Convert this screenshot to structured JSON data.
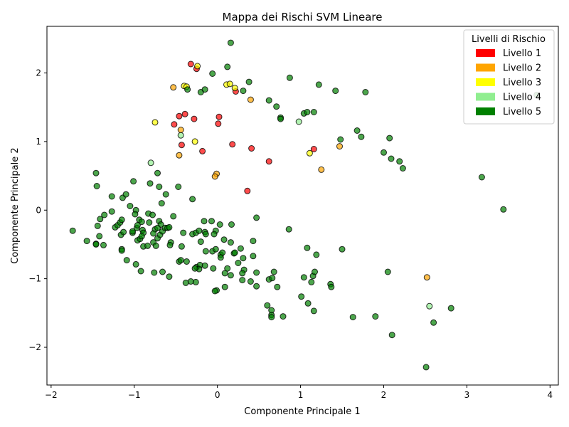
{
  "chart_data": {
    "type": "scatter",
    "title": "Mappa dei Rischi SVM Lineare",
    "xlabel": "Componente Principale 1",
    "ylabel": "Componente Principale 2",
    "xlim": [
      -2.05,
      4.1
    ],
    "ylim": [
      -2.55,
      2.68
    ],
    "xticks": [
      -2,
      -1,
      0,
      1,
      2,
      3,
      4
    ],
    "yticks": [
      -2,
      -1,
      0,
      1,
      2
    ],
    "grid": false,
    "legend": {
      "title": "Livelli di Rischio",
      "placement": "top-right",
      "entries": [
        {
          "label": "Livello 1",
          "color": "#ff0000"
        },
        {
          "label": "Livello 2",
          "color": "#ffa500"
        },
        {
          "label": "Livello 3",
          "color": "#ffff00"
        },
        {
          "label": "Livello 4",
          "color": "#90ee90"
        },
        {
          "label": "Livello 5",
          "color": "#008000"
        }
      ]
    },
    "series": [
      {
        "name": "Livello 1",
        "color": "#ff0000",
        "points": [
          [
            -0.32,
            2.13
          ],
          [
            -0.25,
            2.06
          ],
          [
            0.22,
            1.73
          ],
          [
            -0.39,
            1.4
          ],
          [
            -0.28,
            1.33
          ],
          [
            -0.46,
            1.37
          ],
          [
            -0.52,
            1.25
          ],
          [
            0.02,
            1.36
          ],
          [
            0.01,
            1.26
          ],
          [
            -0.43,
            0.95
          ],
          [
            0.18,
            0.96
          ],
          [
            0.41,
            0.9
          ],
          [
            -0.18,
            0.86
          ],
          [
            0.62,
            0.71
          ],
          [
            1.16,
            0.89
          ],
          [
            0.36,
            0.28
          ]
        ]
      },
      {
        "name": "Livello 2",
        "color": "#ffa500",
        "points": [
          [
            -0.53,
            1.79
          ],
          [
            -0.44,
            1.17
          ],
          [
            -0.46,
            0.8
          ],
          [
            0.4,
            1.61
          ],
          [
            -0.01,
            0.53
          ],
          [
            -0.03,
            0.49
          ],
          [
            1.47,
            0.93
          ],
          [
            1.25,
            0.59
          ],
          [
            2.52,
            -0.98
          ]
        ]
      },
      {
        "name": "Livello 3",
        "color": "#ffff00",
        "points": [
          [
            -0.24,
            2.1
          ],
          [
            -0.4,
            1.81
          ],
          [
            -0.37,
            1.8
          ],
          [
            0.11,
            1.83
          ],
          [
            0.15,
            1.84
          ],
          [
            0.21,
            1.78
          ],
          [
            -0.75,
            1.28
          ],
          [
            -0.27,
            1.0
          ],
          [
            1.11,
            0.83
          ]
        ]
      },
      {
        "name": "Livello 4",
        "color": "#90ee90",
        "points": [
          [
            -0.44,
            1.09
          ],
          [
            -0.8,
            0.69
          ],
          [
            0.98,
            1.29
          ],
          [
            2.55,
            -1.4
          ]
        ]
      },
      {
        "name": "Livello 5",
        "color": "#008000",
        "points": [
          [
            0.16,
            2.44
          ],
          [
            0.12,
            2.09
          ],
          [
            -0.06,
            1.99
          ],
          [
            0.38,
            1.87
          ],
          [
            0.87,
            1.93
          ],
          [
            -0.36,
            1.76
          ],
          [
            -0.2,
            1.72
          ],
          [
            -0.15,
            1.76
          ],
          [
            0.31,
            1.74
          ],
          [
            0.62,
            1.6
          ],
          [
            0.71,
            1.51
          ],
          [
            0.76,
            1.35
          ],
          [
            0.76,
            1.33
          ],
          [
            1.04,
            1.41
          ],
          [
            1.08,
            1.43
          ],
          [
            1.16,
            1.43
          ],
          [
            1.22,
            1.83
          ],
          [
            1.42,
            1.74
          ],
          [
            1.78,
            1.72
          ],
          [
            1.68,
            1.16
          ],
          [
            1.73,
            1.07
          ],
          [
            1.48,
            1.03
          ],
          [
            2.07,
            1.05
          ],
          [
            2.0,
            0.84
          ],
          [
            2.09,
            0.75
          ],
          [
            2.19,
            0.71
          ],
          [
            2.23,
            0.61
          ],
          [
            3.18,
            0.48
          ],
          [
            3.44,
            0.01
          ],
          [
            3.84,
            1.68
          ],
          [
            -1.46,
            0.54
          ],
          [
            -1.45,
            0.35
          ],
          [
            -1.01,
            0.42
          ],
          [
            -0.72,
            0.54
          ],
          [
            -0.7,
            0.34
          ],
          [
            -0.62,
            0.23
          ],
          [
            -0.47,
            0.34
          ],
          [
            -0.67,
            0.1
          ],
          [
            -0.3,
            0.16
          ],
          [
            -0.81,
            0.39
          ],
          [
            -1.27,
            0.2
          ],
          [
            -1.14,
            0.18
          ],
          [
            -1.1,
            0.23
          ],
          [
            -1.05,
            0.06
          ],
          [
            -0.98,
            0.0
          ],
          [
            -0.99,
            -0.06
          ],
          [
            -1.27,
            -0.02
          ],
          [
            -1.36,
            -0.07
          ],
          [
            -1.41,
            -0.13
          ],
          [
            -1.44,
            -0.23
          ],
          [
            -1.42,
            -0.38
          ],
          [
            -1.37,
            -0.51
          ],
          [
            -1.74,
            -0.3
          ],
          [
            -1.57,
            -0.45
          ],
          [
            -1.46,
            -0.49
          ],
          [
            -1.46,
            -0.5
          ],
          [
            -1.23,
            -0.25
          ],
          [
            -1.2,
            -0.22
          ],
          [
            -1.17,
            -0.18
          ],
          [
            -1.15,
            -0.14
          ],
          [
            -1.16,
            -0.36
          ],
          [
            -1.13,
            -0.32
          ],
          [
            -1.09,
            -0.73
          ],
          [
            -1.15,
            -0.57
          ],
          [
            -1.15,
            -0.59
          ],
          [
            -1.02,
            -0.33
          ],
          [
            -1.02,
            -0.31
          ],
          [
            -0.97,
            -0.26
          ],
          [
            -0.96,
            -0.22
          ],
          [
            -0.94,
            -0.14
          ],
          [
            -0.91,
            -0.17
          ],
          [
            -0.9,
            -0.29
          ],
          [
            -0.89,
            -0.33
          ],
          [
            -0.96,
            -0.44
          ],
          [
            -0.93,
            -0.42
          ],
          [
            -0.91,
            -0.38
          ],
          [
            -0.89,
            -0.53
          ],
          [
            -0.84,
            -0.52
          ],
          [
            -0.98,
            -0.79
          ],
          [
            -0.92,
            -0.89
          ],
          [
            -0.83,
            -0.05
          ],
          [
            -0.78,
            -0.07
          ],
          [
            -0.82,
            -0.18
          ],
          [
            -0.75,
            -0.28
          ],
          [
            -0.7,
            -0.16
          ],
          [
            -0.68,
            -0.21
          ],
          [
            -0.72,
            -0.26
          ],
          [
            -0.77,
            -0.34
          ],
          [
            -0.72,
            -0.41
          ],
          [
            -0.77,
            -0.47
          ],
          [
            -0.74,
            -0.52
          ],
          [
            -0.69,
            -0.36
          ],
          [
            -0.66,
            -0.31
          ],
          [
            -0.63,
            -0.26
          ],
          [
            -0.6,
            -0.26
          ],
          [
            -0.58,
            -0.25
          ],
          [
            -0.53,
            -0.09
          ],
          [
            -0.56,
            -0.47
          ],
          [
            -0.57,
            -0.51
          ],
          [
            -0.66,
            -0.9
          ],
          [
            -0.58,
            -0.97
          ],
          [
            -0.76,
            -0.91
          ],
          [
            -0.46,
            -0.75
          ],
          [
            -0.44,
            -0.73
          ],
          [
            -0.43,
            -0.53
          ],
          [
            -0.41,
            -0.33
          ],
          [
            -0.37,
            -0.75
          ],
          [
            -0.3,
            -0.35
          ],
          [
            -0.26,
            -0.33
          ],
          [
            -0.22,
            -0.3
          ],
          [
            -0.16,
            -0.16
          ],
          [
            -0.15,
            -0.32
          ],
          [
            -0.14,
            -0.35
          ],
          [
            -0.14,
            -0.6
          ],
          [
            -0.2,
            -0.46
          ],
          [
            -0.25,
            -0.83
          ],
          [
            -0.21,
            -0.8
          ],
          [
            -0.22,
            -0.86
          ],
          [
            -0.15,
            -0.81
          ],
          [
            -0.38,
            -1.06
          ],
          [
            -0.32,
            -1.04
          ],
          [
            -0.26,
            -1.05
          ],
          [
            -0.27,
            -0.85
          ],
          [
            -0.07,
            -0.16
          ],
          [
            -0.02,
            -0.3
          ],
          [
            -0.04,
            -0.35
          ],
          [
            -0.05,
            -0.85
          ],
          [
            -0.06,
            -0.6
          ],
          [
            -0.02,
            -0.57
          ],
          [
            0.03,
            -0.21
          ],
          [
            0.04,
            -0.65
          ],
          [
            0.06,
            -0.62
          ],
          [
            0.08,
            -0.43
          ],
          [
            0.16,
            -0.47
          ],
          [
            0.17,
            -0.21
          ],
          [
            0.2,
            -0.63
          ],
          [
            0.21,
            -0.62
          ],
          [
            0.25,
            -0.77
          ],
          [
            0.28,
            -0.56
          ],
          [
            0.31,
            -0.7
          ],
          [
            0.32,
            -0.87
          ],
          [
            0.3,
            -0.92
          ],
          [
            0.43,
            -0.45
          ],
          [
            0.43,
            -0.67
          ],
          [
            0.47,
            -0.11
          ],
          [
            0.47,
            -0.91
          ],
          [
            0.4,
            -1.04
          ],
          [
            0.3,
            -1.02
          ],
          [
            0.16,
            -0.95
          ],
          [
            0.12,
            -0.85
          ],
          [
            0.09,
            -0.92
          ],
          [
            0.09,
            -1.12
          ],
          [
            -0.01,
            -1.17
          ],
          [
            -0.03,
            -1.18
          ],
          [
            0.04,
            -0.69
          ],
          [
            0.47,
            -1.11
          ],
          [
            0.6,
            -1.39
          ],
          [
            0.62,
            -1.01
          ],
          [
            0.66,
            -0.99
          ],
          [
            0.68,
            -0.9
          ],
          [
            0.72,
            -1.12
          ],
          [
            0.65,
            -1.46
          ],
          [
            0.65,
            -1.53
          ],
          [
            0.65,
            -1.56
          ],
          [
            0.79,
            -1.55
          ],
          [
            0.86,
            -0.28
          ],
          [
            1.01,
            -1.26
          ],
          [
            1.04,
            -0.98
          ],
          [
            1.08,
            -0.55
          ],
          [
            1.09,
            -1.36
          ],
          [
            1.13,
            -1.05
          ],
          [
            1.15,
            -0.96
          ],
          [
            1.17,
            -0.9
          ],
          [
            1.19,
            -0.65
          ],
          [
            1.16,
            -1.47
          ],
          [
            1.36,
            -1.08
          ],
          [
            1.37,
            -1.12
          ],
          [
            1.5,
            -0.57
          ],
          [
            1.63,
            -1.56
          ],
          [
            1.9,
            -1.55
          ],
          [
            2.05,
            -0.9
          ],
          [
            2.1,
            -1.82
          ],
          [
            2.51,
            -2.29
          ],
          [
            2.6,
            -1.64
          ],
          [
            2.81,
            -1.43
          ]
        ]
      }
    ]
  }
}
